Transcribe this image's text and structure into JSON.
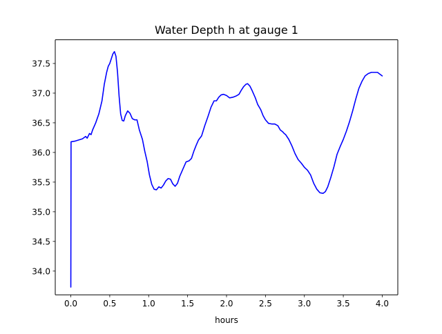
{
  "chart_data": {
    "type": "line",
    "title": "Water Depth h at gauge 1",
    "xlabel": "hours",
    "ylabel": "",
    "xlim": [
      -0.2,
      4.2
    ],
    "ylim": [
      33.6,
      37.9
    ],
    "x_ticks": [
      0.0,
      0.5,
      1.0,
      1.5,
      2.0,
      2.5,
      3.0,
      3.5,
      4.0
    ],
    "x_tick_labels": [
      "0.0",
      "0.5",
      "1.0",
      "1.5",
      "2.0",
      "2.5",
      "3.0",
      "3.5",
      "4.0"
    ],
    "y_ticks": [
      34.0,
      34.5,
      35.0,
      35.5,
      36.0,
      36.5,
      37.0,
      37.5
    ],
    "y_tick_labels": [
      "34.0",
      "34.5",
      "35.0",
      "35.5",
      "36.0",
      "36.5",
      "37.0",
      "37.5"
    ],
    "grid": false,
    "series": [
      {
        "color": "#0000ff",
        "points": [
          [
            0.0,
            33.73
          ],
          [
            0.003,
            36.18
          ],
          [
            0.05,
            36.19
          ],
          [
            0.1,
            36.21
          ],
          [
            0.15,
            36.23
          ],
          [
            0.19,
            36.27
          ],
          [
            0.21,
            36.24
          ],
          [
            0.24,
            36.32
          ],
          [
            0.26,
            36.3
          ],
          [
            0.28,
            36.38
          ],
          [
            0.32,
            36.5
          ],
          [
            0.36,
            36.65
          ],
          [
            0.4,
            36.87
          ],
          [
            0.43,
            37.15
          ],
          [
            0.46,
            37.35
          ],
          [
            0.48,
            37.45
          ],
          [
            0.5,
            37.5
          ],
          [
            0.52,
            37.58
          ],
          [
            0.54,
            37.66
          ],
          [
            0.56,
            37.7
          ],
          [
            0.58,
            37.62
          ],
          [
            0.6,
            37.35
          ],
          [
            0.62,
            36.95
          ],
          [
            0.64,
            36.65
          ],
          [
            0.66,
            36.54
          ],
          [
            0.68,
            36.53
          ],
          [
            0.7,
            36.62
          ],
          [
            0.73,
            36.7
          ],
          [
            0.76,
            36.66
          ],
          [
            0.79,
            36.57
          ],
          [
            0.82,
            36.55
          ],
          [
            0.85,
            36.55
          ],
          [
            0.88,
            36.38
          ],
          [
            0.92,
            36.22
          ],
          [
            0.95,
            36.02
          ],
          [
            0.98,
            35.85
          ],
          [
            1.01,
            35.62
          ],
          [
            1.04,
            35.46
          ],
          [
            1.07,
            35.38
          ],
          [
            1.1,
            35.37
          ],
          [
            1.13,
            35.42
          ],
          [
            1.16,
            35.4
          ],
          [
            1.19,
            35.45
          ],
          [
            1.22,
            35.52
          ],
          [
            1.25,
            35.56
          ],
          [
            1.28,
            35.55
          ],
          [
            1.31,
            35.47
          ],
          [
            1.34,
            35.43
          ],
          [
            1.37,
            35.48
          ],
          [
            1.4,
            35.6
          ],
          [
            1.44,
            35.72
          ],
          [
            1.48,
            35.84
          ],
          [
            1.52,
            35.86
          ],
          [
            1.55,
            35.9
          ],
          [
            1.58,
            36.02
          ],
          [
            1.61,
            36.12
          ],
          [
            1.64,
            36.21
          ],
          [
            1.68,
            36.28
          ],
          [
            1.72,
            36.45
          ],
          [
            1.76,
            36.6
          ],
          [
            1.8,
            36.76
          ],
          [
            1.84,
            36.87
          ],
          [
            1.87,
            36.87
          ],
          [
            1.9,
            36.93
          ],
          [
            1.93,
            36.97
          ],
          [
            1.96,
            36.98
          ],
          [
            2.0,
            36.96
          ],
          [
            2.04,
            36.92
          ],
          [
            2.08,
            36.93
          ],
          [
            2.12,
            36.95
          ],
          [
            2.16,
            36.98
          ],
          [
            2.19,
            37.05
          ],
          [
            2.22,
            37.11
          ],
          [
            2.25,
            37.15
          ],
          [
            2.27,
            37.16
          ],
          [
            2.3,
            37.12
          ],
          [
            2.33,
            37.04
          ],
          [
            2.37,
            36.92
          ],
          [
            2.4,
            36.81
          ],
          [
            2.44,
            36.72
          ],
          [
            2.47,
            36.62
          ],
          [
            2.5,
            36.55
          ],
          [
            2.54,
            36.49
          ],
          [
            2.58,
            36.48
          ],
          [
            2.62,
            36.48
          ],
          [
            2.66,
            36.45
          ],
          [
            2.69,
            36.38
          ],
          [
            2.72,
            36.35
          ],
          [
            2.74,
            36.32
          ],
          [
            2.76,
            36.3
          ],
          [
            2.8,
            36.22
          ],
          [
            2.84,
            36.11
          ],
          [
            2.88,
            35.98
          ],
          [
            2.92,
            35.88
          ],
          [
            2.96,
            35.82
          ],
          [
            3.0,
            35.75
          ],
          [
            3.04,
            35.7
          ],
          [
            3.08,
            35.62
          ],
          [
            3.12,
            35.48
          ],
          [
            3.16,
            35.38
          ],
          [
            3.2,
            35.32
          ],
          [
            3.24,
            35.31
          ],
          [
            3.27,
            35.34
          ],
          [
            3.3,
            35.42
          ],
          [
            3.34,
            35.58
          ],
          [
            3.38,
            35.76
          ],
          [
            3.42,
            35.97
          ],
          [
            3.46,
            36.1
          ],
          [
            3.5,
            36.22
          ],
          [
            3.54,
            36.36
          ],
          [
            3.58,
            36.52
          ],
          [
            3.62,
            36.7
          ],
          [
            3.66,
            36.9
          ],
          [
            3.7,
            37.08
          ],
          [
            3.74,
            37.2
          ],
          [
            3.78,
            37.29
          ],
          [
            3.82,
            37.33
          ],
          [
            3.86,
            37.35
          ],
          [
            3.9,
            37.35
          ],
          [
            3.94,
            37.35
          ],
          [
            3.97,
            37.32
          ],
          [
            4.0,
            37.29
          ]
        ]
      }
    ]
  }
}
